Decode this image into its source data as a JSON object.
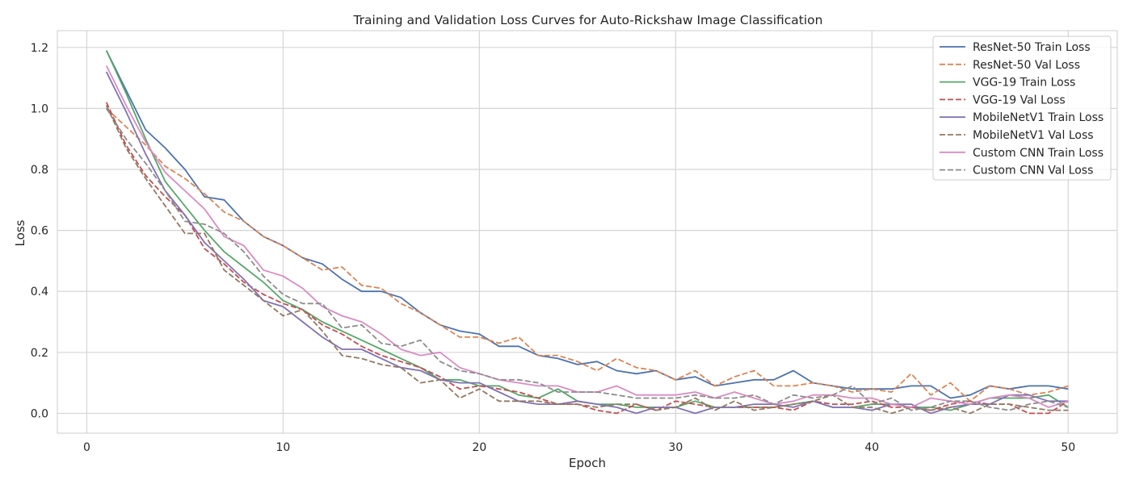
{
  "chart_data": {
    "type": "line",
    "title": "Training and Validation Loss Curves for Auto-Rickshaw Image Classification",
    "xlabel": "Epoch",
    "ylabel": "Loss",
    "xlim": [
      -1.5,
      52.5
    ],
    "ylim": [
      -0.065,
      1.255
    ],
    "xticks": [
      0,
      10,
      20,
      30,
      40,
      50
    ],
    "yticks": [
      0.0,
      0.2,
      0.4,
      0.6,
      0.8,
      1.0,
      1.2
    ],
    "grid": true,
    "legend_position": "top-right",
    "x": [
      1,
      2,
      3,
      4,
      5,
      6,
      7,
      8,
      9,
      10,
      11,
      12,
      13,
      14,
      15,
      16,
      17,
      18,
      19,
      20,
      21,
      22,
      23,
      24,
      25,
      26,
      27,
      28,
      29,
      30,
      31,
      32,
      33,
      34,
      35,
      36,
      37,
      38,
      39,
      40,
      41,
      42,
      43,
      44,
      45,
      46,
      47,
      48,
      49,
      50
    ],
    "series": [
      {
        "name": "ResNet-50 Train Loss",
        "color": "#4c72b0",
        "dash": "solid",
        "values": [
          1.19,
          1.06,
          0.93,
          0.87,
          0.8,
          0.71,
          0.7,
          0.63,
          0.58,
          0.55,
          0.51,
          0.49,
          0.44,
          0.4,
          0.4,
          0.38,
          0.33,
          0.29,
          0.27,
          0.26,
          0.22,
          0.22,
          0.19,
          0.18,
          0.16,
          0.17,
          0.14,
          0.13,
          0.14,
          0.11,
          0.12,
          0.09,
          0.1,
          0.11,
          0.11,
          0.14,
          0.1,
          0.09,
          0.08,
          0.08,
          0.08,
          0.09,
          0.09,
          0.05,
          0.06,
          0.09,
          0.08,
          0.09,
          0.09,
          0.08
        ]
      },
      {
        "name": "ResNet-50 Val Loss",
        "color": "#dd8452",
        "dash": "dashed",
        "values": [
          1.0,
          0.94,
          0.88,
          0.81,
          0.77,
          0.72,
          0.66,
          0.63,
          0.58,
          0.55,
          0.51,
          0.47,
          0.48,
          0.42,
          0.41,
          0.36,
          0.33,
          0.29,
          0.25,
          0.25,
          0.23,
          0.25,
          0.19,
          0.19,
          0.17,
          0.14,
          0.18,
          0.15,
          0.14,
          0.11,
          0.14,
          0.09,
          0.12,
          0.14,
          0.09,
          0.09,
          0.1,
          0.09,
          0.07,
          0.08,
          0.07,
          0.13,
          0.06,
          0.1,
          0.04,
          0.09,
          0.08,
          0.06,
          0.07,
          0.09
        ]
      },
      {
        "name": "VGG-19 Train Loss",
        "color": "#55a868",
        "dash": "solid",
        "values": [
          1.19,
          1.05,
          0.9,
          0.76,
          0.68,
          0.6,
          0.53,
          0.48,
          0.43,
          0.37,
          0.34,
          0.3,
          0.27,
          0.24,
          0.21,
          0.18,
          0.15,
          0.11,
          0.11,
          0.09,
          0.09,
          0.06,
          0.05,
          0.08,
          0.04,
          0.03,
          0.03,
          0.02,
          0.02,
          0.02,
          0.04,
          0.02,
          0.02,
          0.02,
          0.02,
          0.03,
          0.04,
          0.02,
          0.02,
          0.03,
          0.03,
          0.02,
          0.02,
          0.01,
          0.03,
          0.05,
          0.05,
          0.05,
          0.06,
          0.02
        ]
      },
      {
        "name": "VGG-19 Val Loss",
        "color": "#c44e52",
        "dash": "dashed",
        "values": [
          1.02,
          0.88,
          0.78,
          0.71,
          0.65,
          0.54,
          0.49,
          0.43,
          0.39,
          0.36,
          0.34,
          0.29,
          0.26,
          0.22,
          0.19,
          0.17,
          0.15,
          0.12,
          0.08,
          0.09,
          0.08,
          0.07,
          0.05,
          0.03,
          0.03,
          0.01,
          0.0,
          0.03,
          0.01,
          0.04,
          0.03,
          0.02,
          0.02,
          0.02,
          0.02,
          0.01,
          0.04,
          0.03,
          0.03,
          0.04,
          0.02,
          0.02,
          0.01,
          0.03,
          0.04,
          0.03,
          0.03,
          0.0,
          0.0,
          0.04
        ]
      },
      {
        "name": "MobileNetV1 Train Loss",
        "color": "#8172b3",
        "dash": "solid",
        "values": [
          1.12,
          0.99,
          0.85,
          0.73,
          0.65,
          0.56,
          0.5,
          0.44,
          0.37,
          0.35,
          0.3,
          0.25,
          0.21,
          0.21,
          0.18,
          0.15,
          0.14,
          0.11,
          0.1,
          0.1,
          0.07,
          0.04,
          0.03,
          0.03,
          0.04,
          0.03,
          0.02,
          0.0,
          0.02,
          0.02,
          0.0,
          0.02,
          0.02,
          0.03,
          0.03,
          0.02,
          0.04,
          0.02,
          0.02,
          0.01,
          0.03,
          0.03,
          0.0,
          0.02,
          0.03,
          0.03,
          0.06,
          0.06,
          0.04,
          0.04
        ]
      },
      {
        "name": "MobileNetV1 Val Loss",
        "color": "#937860",
        "dash": "dashed",
        "values": [
          1.01,
          0.87,
          0.77,
          0.68,
          0.59,
          0.59,
          0.47,
          0.42,
          0.37,
          0.32,
          0.34,
          0.27,
          0.19,
          0.18,
          0.16,
          0.15,
          0.1,
          0.11,
          0.05,
          0.08,
          0.04,
          0.04,
          0.04,
          0.03,
          0.03,
          0.02,
          0.03,
          0.03,
          0.01,
          0.02,
          0.05,
          0.01,
          0.04,
          0.01,
          0.02,
          0.03,
          0.04,
          0.06,
          0.02,
          0.02,
          0.0,
          0.02,
          0.01,
          0.02,
          0.0,
          0.03,
          0.03,
          0.02,
          0.01,
          0.01
        ]
      },
      {
        "name": "Custom CNN Train Loss",
        "color": "#da8bc3",
        "dash": "solid",
        "values": [
          1.14,
          1.01,
          0.89,
          0.79,
          0.73,
          0.67,
          0.58,
          0.55,
          0.47,
          0.45,
          0.41,
          0.35,
          0.32,
          0.3,
          0.26,
          0.21,
          0.19,
          0.2,
          0.15,
          0.13,
          0.11,
          0.1,
          0.09,
          0.09,
          0.07,
          0.07,
          0.09,
          0.06,
          0.06,
          0.06,
          0.07,
          0.05,
          0.07,
          0.05,
          0.03,
          0.04,
          0.06,
          0.06,
          0.05,
          0.05,
          0.03,
          0.02,
          0.05,
          0.04,
          0.03,
          0.05,
          0.06,
          0.05,
          0.02,
          0.04
        ]
      },
      {
        "name": "Custom CNN Val Loss",
        "color": "#8c8c8c",
        "dash": "dashed",
        "values": [
          1.0,
          0.9,
          0.82,
          0.73,
          0.63,
          0.62,
          0.59,
          0.53,
          0.45,
          0.39,
          0.36,
          0.36,
          0.28,
          0.29,
          0.23,
          0.22,
          0.24,
          0.17,
          0.14,
          0.13,
          0.11,
          0.11,
          0.1,
          0.07,
          0.07,
          0.07,
          0.06,
          0.05,
          0.05,
          0.05,
          0.06,
          0.05,
          0.05,
          0.06,
          0.03,
          0.06,
          0.05,
          0.06,
          0.09,
          0.03,
          0.05,
          0.01,
          0.02,
          0.04,
          0.04,
          0.02,
          0.01,
          0.03,
          0.04,
          0.02
        ]
      }
    ]
  }
}
